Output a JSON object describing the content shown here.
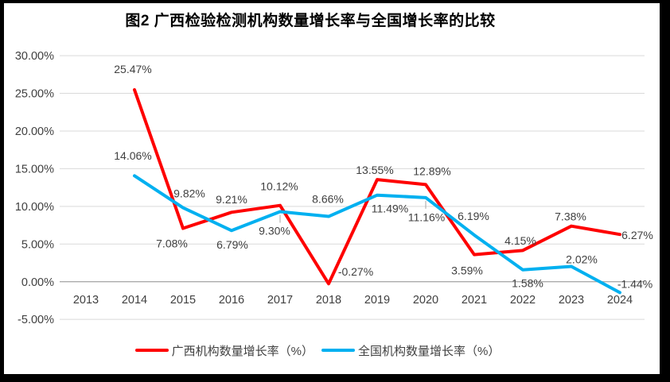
{
  "chart_data": {
    "type": "line",
    "title": "图2 广西检验检测机构数量增长率与全国增长率的比较",
    "categories": [
      "2013",
      "2014",
      "2015",
      "2016",
      "2017",
      "2018",
      "2019",
      "2020",
      "2021",
      "2022",
      "2023",
      "2024"
    ],
    "xlabel": "",
    "ylabel": "",
    "ylim": [
      -5,
      30
    ],
    "grid": true,
    "legend_position": "bottom",
    "y_tick_values": [
      30,
      25,
      20,
      15,
      10,
      5,
      0,
      -5
    ],
    "y_tick_labels": [
      "30.00%",
      "25.00%",
      "20.00%",
      "15.00%",
      "10.00%",
      "5.00%",
      "0.00%",
      "-5.00%"
    ],
    "series": [
      {
        "name": "广西机构数量增长率（%）",
        "color": "#FE0000",
        "values": [
          null,
          25.47,
          7.08,
          9.21,
          10.12,
          -0.27,
          13.55,
          12.89,
          3.59,
          4.15,
          7.38,
          6.27
        ],
        "labels": [
          "",
          "25.47%",
          "7.08%",
          "9.21%",
          "10.12%",
          "-0.27%",
          "13.55%",
          "12.89%",
          "3.59%",
          "4.15%",
          "7.38%",
          "6.27%"
        ]
      },
      {
        "name": "全国机构数量增长率（%）",
        "color": "#00B0F0",
        "values": [
          null,
          14.06,
          9.82,
          6.79,
          9.3,
          8.66,
          11.49,
          11.16,
          6.19,
          1.58,
          2.02,
          -1.44
        ],
        "labels": [
          "",
          "14.06%",
          "9.82%",
          "6.79%",
          "9.30%",
          "8.66%",
          "11.49%",
          "11.16%",
          "6.19%",
          "1.58%",
          "2.02%",
          "-1.44%"
        ]
      }
    ]
  }
}
